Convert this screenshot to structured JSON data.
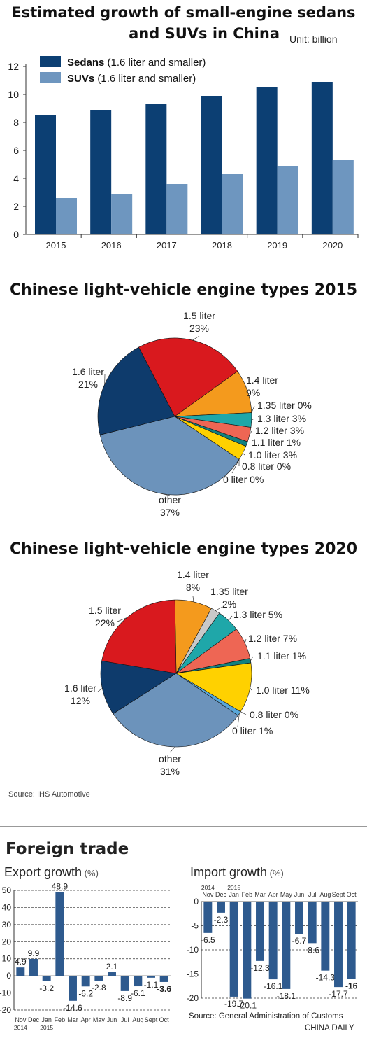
{
  "panel1": {
    "title_line1": "Estimated growth of small-engine sedans",
    "title_line2": "and SUVs in China",
    "unit": "Unit: billion"
  },
  "panel2": {
    "title": "Chinese light-vehicle engine types 2015"
  },
  "panel3": {
    "title": "Chinese light-vehicle engine types 2020"
  },
  "source_ihs": "Source: IHS Automotive",
  "trade": {
    "title": "Foreign trade",
    "source": "Source: General Administration of Customs",
    "credit": "CHINA DAILY"
  },
  "colors": {
    "sedan": "#0c3f73",
    "suv": "#6e96bf",
    "other": "#6c93bb",
    "l16": "#0e3b6c",
    "l15": "#d9191e",
    "l14": "#f49a1d",
    "l135": "#c9c9c9",
    "l13": "#1fa7a9",
    "l12": "#ee6654",
    "l11": "#12807f",
    "l10": "#ffd100",
    "l08": "#8fcf5a",
    "l00": "#58a6d8",
    "trade_bar": "#2e5a8e"
  },
  "chart_data": [
    {
      "type": "bar",
      "title": "Estimated growth of small-engine sedans and SUVs in China",
      "unit": "Unit: billion",
      "categories": [
        "2015",
        "2016",
        "2017",
        "2018",
        "2019",
        "2020"
      ],
      "series": [
        {
          "name": "Sedans",
          "name_suffix": "(1.6 liter and smaller)",
          "values": [
            8.5,
            8.9,
            9.3,
            9.9,
            10.5,
            10.9
          ]
        },
        {
          "name": "SUVs",
          "name_suffix": "(1.6 liter and smaller)",
          "values": [
            2.6,
            2.9,
            3.6,
            4.3,
            4.9,
            5.3
          ]
        }
      ],
      "ylim": [
        0,
        12
      ],
      "yticks": [
        0,
        2,
        4,
        6,
        8,
        10,
        12
      ]
    },
    {
      "type": "pie",
      "title": "Chinese light-vehicle engine types 2015",
      "slices": [
        {
          "label": "1.5 liter",
          "pct": "23%",
          "value": 23,
          "color_key": "l15"
        },
        {
          "label": "1.4 liter",
          "pct": "9%",
          "value": 9,
          "color_key": "l14"
        },
        {
          "label": "1.35 liter",
          "pct": "0%",
          "value": 0,
          "color_key": "l135"
        },
        {
          "label": "1.3 liter",
          "pct": "3%",
          "value": 3,
          "color_key": "l13"
        },
        {
          "label": "1.2 liter",
          "pct": "3%",
          "value": 3,
          "color_key": "l12"
        },
        {
          "label": "1.1 liter",
          "pct": "1%",
          "value": 1,
          "color_key": "l11"
        },
        {
          "label": "1.0 liter",
          "pct": "3%",
          "value": 3,
          "color_key": "l10"
        },
        {
          "label": "0.8 liter",
          "pct": "0%",
          "value": 0,
          "color_key": "l08"
        },
        {
          "label": "0 liter",
          "pct": "0%",
          "value": 0,
          "color_key": "l00"
        },
        {
          "label": "other",
          "pct": "37%",
          "value": 37,
          "color_key": "other"
        },
        {
          "label": "1.6 liter",
          "pct": "21%",
          "value": 21,
          "color_key": "l16"
        }
      ]
    },
    {
      "type": "pie",
      "title": "Chinese light-vehicle engine types 2020",
      "slices": [
        {
          "label": "1.4 liter",
          "pct": "8%",
          "value": 8,
          "color_key": "l14"
        },
        {
          "label": "1.35 liter",
          "pct": "2%",
          "value": 2,
          "color_key": "l135"
        },
        {
          "label": "1.3 liter",
          "pct": "5%",
          "value": 5,
          "color_key": "l13"
        },
        {
          "label": "1.2 liter",
          "pct": "7%",
          "value": 7,
          "color_key": "l12"
        },
        {
          "label": "1.1 liter",
          "pct": "1%",
          "value": 1,
          "color_key": "l11"
        },
        {
          "label": "1.0 liter",
          "pct": "11%",
          "value": 11,
          "color_key": "l10"
        },
        {
          "label": "0.8 liter",
          "pct": "0%",
          "value": 0,
          "color_key": "l08"
        },
        {
          "label": "0 liter",
          "pct": "1%",
          "value": 1,
          "color_key": "l00"
        },
        {
          "label": "other",
          "pct": "31%",
          "value": 31,
          "color_key": "other"
        },
        {
          "label": "1.6 liter",
          "pct": "12%",
          "value": 12,
          "color_key": "l16"
        },
        {
          "label": "1.5 liter",
          "pct": "22%",
          "value": 22,
          "color_key": "l15"
        }
      ]
    },
    {
      "type": "bar",
      "title": "Export growth",
      "unit": "(%)",
      "categories": [
        "Nov",
        "Dec",
        "Jan",
        "Feb",
        "Mar",
        "Apr",
        "May",
        "Jun",
        "Jul",
        "Aug",
        "Sept",
        "Oct"
      ],
      "year_labels": {
        "Nov": "2014",
        "Jan": "2015"
      },
      "values": [
        4.9,
        9.9,
        -3.2,
        48.9,
        -14.6,
        -6.2,
        -2.8,
        2.1,
        -8.9,
        -6.1,
        -1.1,
        -3.6
      ],
      "value_labels": [
        "4.9",
        "9.9",
        "-3.2",
        "48.9",
        "-14.6",
        "-6.2",
        "-2.8",
        "2.1",
        "-8.9",
        "-6.1",
        "-1.1",
        "-3.6"
      ],
      "ylim": [
        -20,
        50
      ],
      "yticks": [
        -20,
        -10,
        0,
        10,
        20,
        30,
        40,
        50
      ]
    },
    {
      "type": "bar",
      "title": "Import growth",
      "unit": "(%)",
      "categories": [
        "Nov",
        "Dec",
        "Jan",
        "Feb",
        "Mar",
        "Apr",
        "May",
        "Jun",
        "Jul",
        "Aug",
        "Sept",
        "Oct"
      ],
      "year_labels": {
        "Nov": "2014",
        "Jan": "2015"
      },
      "values": [
        -6.5,
        -2.3,
        -19.7,
        -20.1,
        -12.3,
        -16.1,
        -18.1,
        -6.7,
        -8.6,
        -14.3,
        -17.7,
        -16
      ],
      "value_labels": [
        "-6.5",
        "-2.3",
        "-19.7",
        "-20.1",
        "-12.3",
        "-16.1",
        "-18.1",
        "-6.7",
        "-8.6",
        "-14.3",
        "-17.7",
        "-16"
      ],
      "ylim": [
        -20,
        0
      ],
      "yticks": [
        0,
        -5,
        -10,
        -15,
        -20
      ]
    }
  ]
}
